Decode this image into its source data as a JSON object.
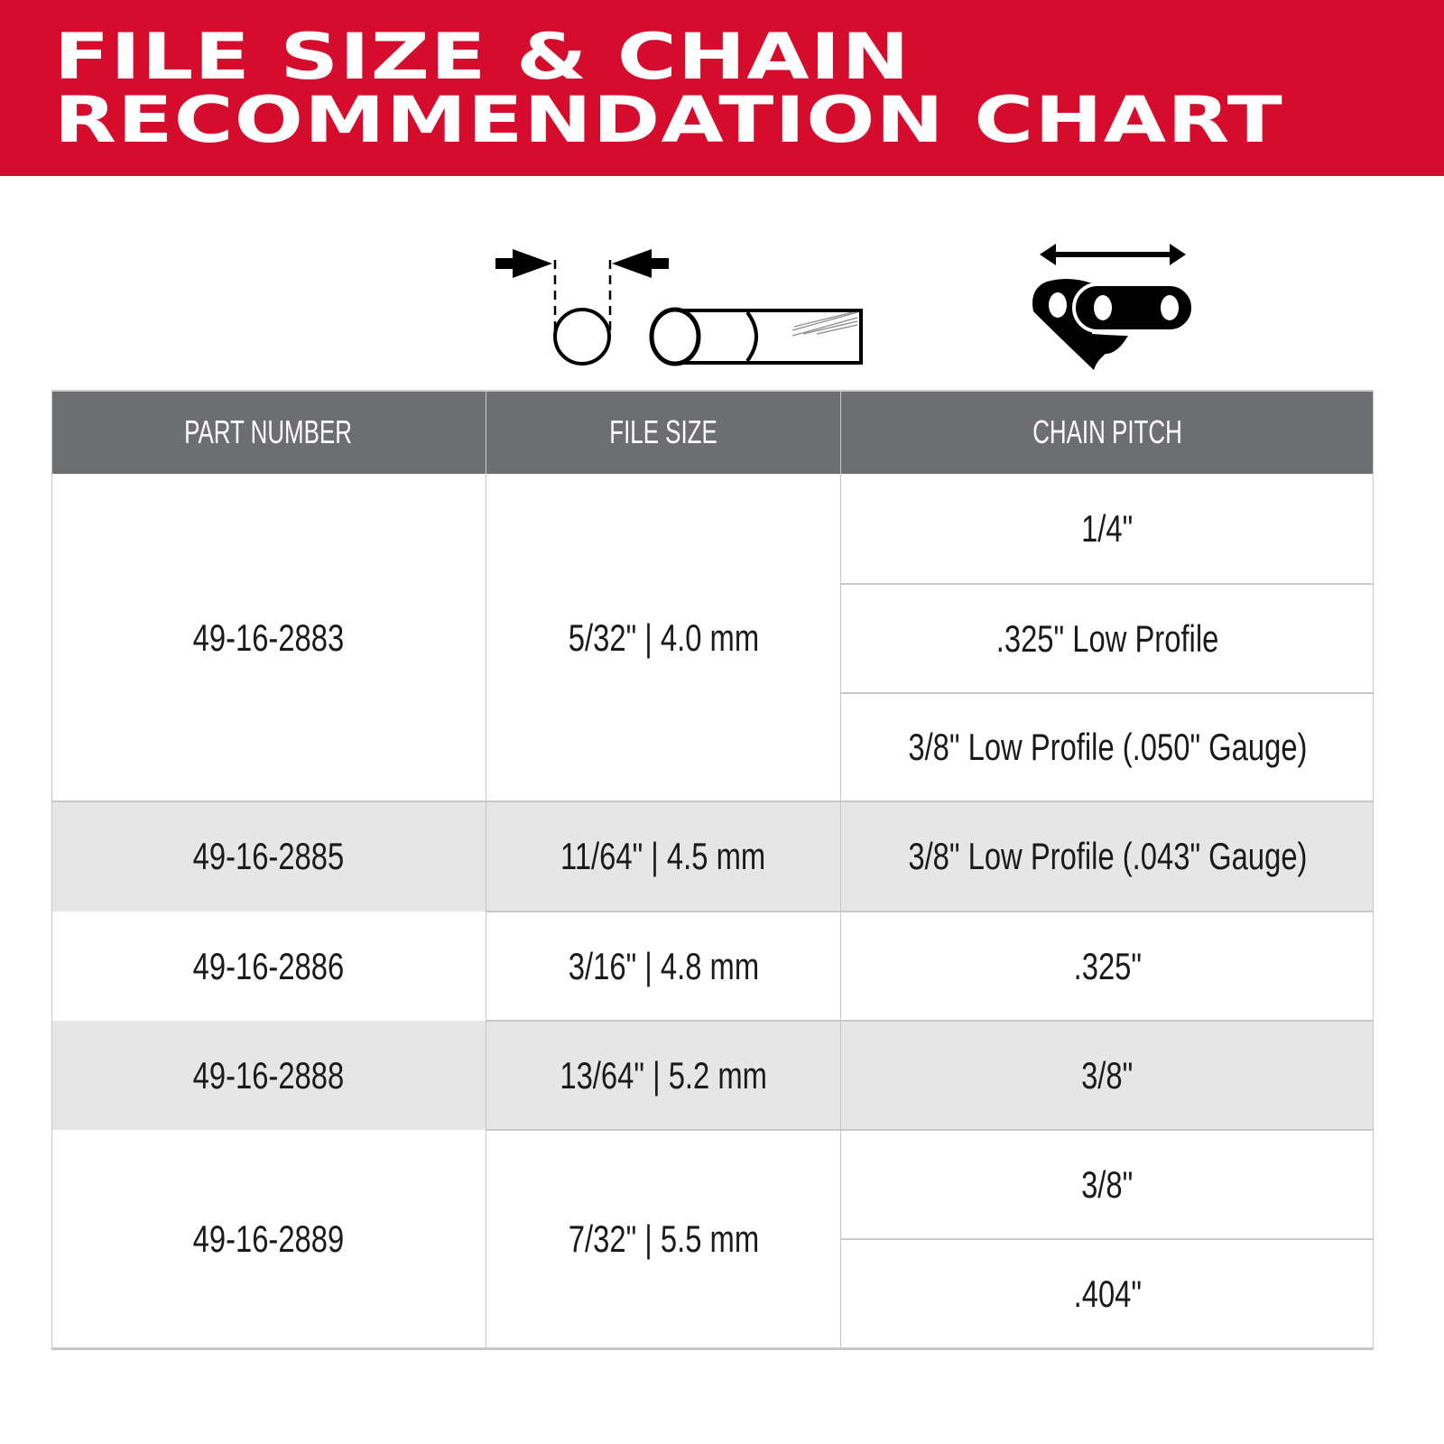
{
  "header": {
    "title_line1": "FILE SIZE & CHAIN",
    "title_line2": "RECOMMENDATION CHART",
    "color": "#d50c2b"
  },
  "icons": {
    "file_size": "file-diameter-icon",
    "chain_pitch": "chain-pitch-icon"
  },
  "table": {
    "columns": [
      "PART NUMBER",
      "FILE SIZE",
      "CHAIN PITCH"
    ],
    "header_color": "#6d6e71",
    "rows": [
      {
        "part": "49-16-2883",
        "file_size": "5/32\" | 4.0 mm",
        "pitches": [
          "1/4\"",
          ".325\" Low Profile",
          "3/8\" Low Profile (.050\" Gauge)"
        ]
      },
      {
        "part": "49-16-2885",
        "file_size": "11/64\" | 4.5 mm",
        "pitches": [
          "3/8\" Low Profile (.043\" Gauge)"
        ]
      },
      {
        "part": "49-16-2886",
        "file_size": "3/16\" | 4.8 mm",
        "pitches": [
          ".325\""
        ]
      },
      {
        "part": "49-16-2888",
        "file_size": "13/64\" | 5.2 mm",
        "pitches": [
          "3/8\""
        ]
      },
      {
        "part": "49-16-2889",
        "file_size": "7/32\" | 5.5 mm",
        "pitches": [
          "3/8\"",
          ".404\""
        ]
      }
    ]
  }
}
